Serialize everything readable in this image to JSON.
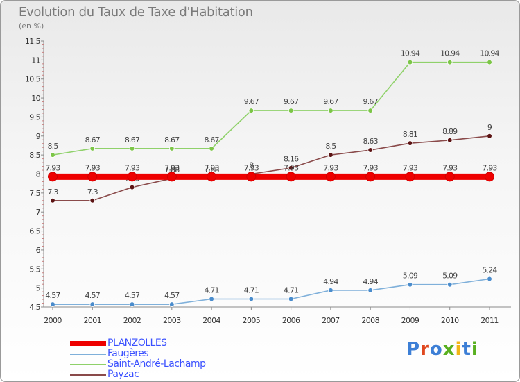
{
  "title": "Evolution du Taux de Taxe d'Habitation",
  "subtitle": "(en %)",
  "logo": {
    "text": "Proxiti",
    "colors": [
      "#3d7fd6",
      "#e0481f",
      "#3d7fd6",
      "#59b020",
      "#f2b516",
      "#3d7fd6",
      "#59b020"
    ]
  },
  "chart_data": {
    "type": "line",
    "x": [
      2000,
      2001,
      2002,
      2003,
      2004,
      2005,
      2006,
      2007,
      2008,
      2009,
      2010,
      2011
    ],
    "ylim": [
      4.5,
      11.5
    ],
    "yticks": [
      4.5,
      5,
      5.5,
      6,
      6.5,
      7,
      7.5,
      8,
      8.5,
      9,
      9.5,
      10,
      10.5,
      11,
      11.5
    ],
    "grid": false,
    "legend_position": "bottom-left",
    "series": [
      {
        "name": "Saint-André-Lachamp",
        "color": "#8fd16a",
        "point_color": "#7cc547",
        "values": [
          8.5,
          8.67,
          8.67,
          8.67,
          8.67,
          9.67,
          9.67,
          9.67,
          9.67,
          10.94,
          10.94,
          10.94
        ],
        "labels": [
          "8.5",
          "8.67",
          "8.67",
          "8.67",
          "8.67",
          "9.67",
          "9.67",
          "9.67",
          "9.67",
          "10.94",
          "10.94",
          "10.94"
        ],
        "bold": false
      },
      {
        "name": "Payzac",
        "color": "#8a4a4a",
        "point_color": "#5c1414",
        "values": [
          7.3,
          7.3,
          7.65,
          7.88,
          7.88,
          8.0,
          8.16,
          8.5,
          8.63,
          8.81,
          8.89,
          9.0
        ],
        "labels": [
          "7.3",
          "7.3",
          "7.65",
          "7.88",
          "7.88",
          "8",
          "8.16",
          "8.5",
          "8.63",
          "8.81",
          "8.89",
          "9"
        ],
        "bold": false
      },
      {
        "name": "Faugères",
        "color": "#7fb0da",
        "point_color": "#4a8ccc",
        "values": [
          4.57,
          4.57,
          4.57,
          4.57,
          4.71,
          4.71,
          4.71,
          4.94,
          4.94,
          5.09,
          5.09,
          5.24
        ],
        "labels": [
          "4.57",
          "4.57",
          "4.57",
          "4.57",
          "4.71",
          "4.71",
          "4.71",
          "4.94",
          "4.94",
          "5.09",
          "5.09",
          "5.24"
        ],
        "bold": false
      },
      {
        "name": "PLANZOLLES",
        "color": "#ee0000",
        "point_color": "#ee0000",
        "values": [
          7.93,
          7.93,
          7.93,
          7.93,
          7.93,
          7.93,
          7.93,
          7.93,
          7.93,
          7.93,
          7.93,
          7.93
        ],
        "labels": [
          "7.93",
          "7.93",
          "7.93",
          "7.93",
          "7.93",
          "7.93",
          "7.93",
          "7.93",
          "7.93",
          "7.93",
          "7.93",
          "7.93"
        ],
        "bold": true
      }
    ],
    "legend": [
      "PLANZOLLES",
      "Faugères",
      "Saint-André-Lachamp",
      "Payzac"
    ]
  }
}
